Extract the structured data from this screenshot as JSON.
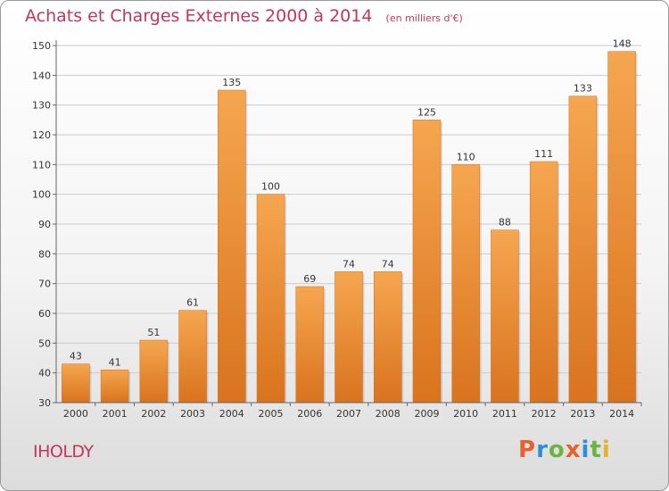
{
  "header": {
    "title": "Achats et Charges Externes 2000 à 2014",
    "subtitle": "(en milliers d'€)"
  },
  "footer": {
    "commune": "IHOLDY",
    "brand": "Proxiti",
    "brand_colors": [
      "#e8612c",
      "#2f8ed8",
      "#6db33f",
      "#e8612c",
      "#2f8ed8",
      "#6db33f",
      "#e8b02c"
    ]
  },
  "colors": {
    "title": "#c2365c",
    "bar_light": "#f6a650",
    "bar_dark": "#d9731e",
    "grid": "#cccccc",
    "axis": "#666666"
  },
  "chart_data": {
    "type": "bar",
    "title": "Achats et Charges Externes 2000 à 2014",
    "subtitle": "(en milliers d'€)",
    "categories": [
      "2000",
      "2001",
      "2002",
      "2003",
      "2004",
      "2005",
      "2006",
      "2007",
      "2008",
      "2009",
      "2010",
      "2011",
      "2012",
      "2013",
      "2014"
    ],
    "values": [
      43,
      41,
      51,
      61,
      135,
      100,
      69,
      74,
      74,
      125,
      110,
      88,
      111,
      133,
      148
    ],
    "ylim": [
      30,
      150
    ],
    "yticks": [
      30,
      40,
      50,
      60,
      70,
      80,
      90,
      100,
      110,
      120,
      130,
      140,
      150
    ],
    "grid": true,
    "xlabel": "",
    "ylabel": ""
  }
}
